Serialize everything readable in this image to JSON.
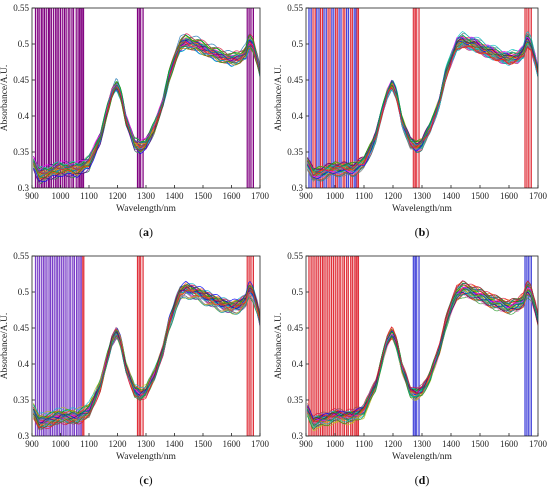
{
  "chart_data": [
    {
      "panel": "a",
      "type": "line",
      "panel_label": "(a)",
      "xlabel": "Wavelength/nm",
      "ylabel": "Absorbance/A.U.",
      "xlim": [
        900,
        1700
      ],
      "ylim": [
        0.3,
        0.55
      ],
      "xticks": [
        900,
        1000,
        1100,
        1200,
        1300,
        1400,
        1500,
        1600,
        1700
      ],
      "yticks": [
        0.3,
        0.35,
        0.4,
        0.45,
        0.5,
        0.55
      ],
      "grid": false,
      "num_spectra": 40,
      "spectrum_key_points": {
        "x": [
          905,
          925,
          960,
          1000,
          1060,
          1100,
          1140,
          1165,
          1180,
          1197,
          1212,
          1230,
          1260,
          1280,
          1300,
          1330,
          1360,
          1380,
          1405,
          1420,
          1440,
          1480,
          1520,
          1560,
          1600,
          1630,
          1650,
          1662,
          1675,
          1690,
          1700
        ],
        "y": [
          0.335,
          0.318,
          0.322,
          0.327,
          0.326,
          0.335,
          0.37,
          0.41,
          0.432,
          0.445,
          0.43,
          0.395,
          0.362,
          0.357,
          0.362,
          0.385,
          0.42,
          0.455,
          0.485,
          0.5,
          0.505,
          0.5,
          0.492,
          0.485,
          0.48,
          0.483,
          0.49,
          0.506,
          0.5,
          0.48,
          0.462
        ]
      },
      "selected_bands": [
        {
          "start": 912,
          "end": 920,
          "color": "#800080"
        },
        {
          "start": 925,
          "end": 933,
          "color": "#800080"
        },
        {
          "start": 938,
          "end": 944,
          "color": "#800080"
        },
        {
          "start": 950,
          "end": 958,
          "color": "#800080"
        },
        {
          "start": 962,
          "end": 968,
          "color": "#800080"
        },
        {
          "start": 975,
          "end": 983,
          "color": "#800080"
        },
        {
          "start": 988,
          "end": 994,
          "color": "#800080"
        },
        {
          "start": 1000,
          "end": 1008,
          "color": "#800080"
        },
        {
          "start": 1014,
          "end": 1020,
          "color": "#800080"
        },
        {
          "start": 1027,
          "end": 1033,
          "color": "#800080"
        },
        {
          "start": 1040,
          "end": 1046,
          "color": "#800080"
        },
        {
          "start": 1055,
          "end": 1062,
          "color": "#800080"
        },
        {
          "start": 1067,
          "end": 1072,
          "color": "#800080"
        },
        {
          "start": 1076,
          "end": 1081,
          "color": "#800080"
        },
        {
          "start": 1270,
          "end": 1276,
          "color": "#800080"
        },
        {
          "start": 1280,
          "end": 1290,
          "color": "#800080"
        },
        {
          "start": 1655,
          "end": 1662,
          "color": "#800080"
        },
        {
          "start": 1668,
          "end": 1677,
          "color": "#800080"
        }
      ]
    },
    {
      "panel": "b",
      "type": "line",
      "panel_label": "(b)",
      "xlabel": "Wavelength/nm",
      "ylabel": "Absorbance/A.U.",
      "xlim": [
        900,
        1700
      ],
      "ylim": [
        0.3,
        0.55
      ],
      "xticks": [
        900,
        1000,
        1100,
        1200,
        1300,
        1400,
        1500,
        1600,
        1700
      ],
      "yticks": [
        0.3,
        0.35,
        0.4,
        0.45,
        0.5,
        0.55
      ],
      "grid": false,
      "num_spectra": 40,
      "spectrum_key_points": {
        "x": [
          905,
          925,
          960,
          1000,
          1060,
          1100,
          1140,
          1165,
          1180,
          1197,
          1212,
          1230,
          1260,
          1280,
          1300,
          1330,
          1360,
          1380,
          1405,
          1420,
          1440,
          1480,
          1520,
          1560,
          1600,
          1630,
          1650,
          1662,
          1675,
          1690,
          1700
        ],
        "y": [
          0.335,
          0.318,
          0.322,
          0.327,
          0.326,
          0.335,
          0.37,
          0.41,
          0.432,
          0.445,
          0.43,
          0.395,
          0.362,
          0.357,
          0.362,
          0.385,
          0.42,
          0.455,
          0.485,
          0.5,
          0.505,
          0.5,
          0.492,
          0.485,
          0.48,
          0.483,
          0.49,
          0.506,
          0.5,
          0.48,
          0.462
        ]
      },
      "selected_bands": [
        {
          "start": 910,
          "end": 918,
          "color": "#3a3ad8"
        },
        {
          "start": 924,
          "end": 932,
          "color": "#e0303a"
        },
        {
          "start": 937,
          "end": 945,
          "color": "#3a3ad8"
        },
        {
          "start": 950,
          "end": 957,
          "color": "#e0303a"
        },
        {
          "start": 962,
          "end": 970,
          "color": "#3a3ad8"
        },
        {
          "start": 976,
          "end": 983,
          "color": "#e0303a"
        },
        {
          "start": 989,
          "end": 996,
          "color": "#3a3ad8"
        },
        {
          "start": 1002,
          "end": 1008,
          "color": "#e0303a"
        },
        {
          "start": 1014,
          "end": 1021,
          "color": "#3a3ad8"
        },
        {
          "start": 1028,
          "end": 1034,
          "color": "#e0303a"
        },
        {
          "start": 1040,
          "end": 1047,
          "color": "#3a3ad8"
        },
        {
          "start": 1054,
          "end": 1060,
          "color": "#e0303a"
        },
        {
          "start": 1066,
          "end": 1072,
          "color": "#3a3ad8"
        },
        {
          "start": 1076,
          "end": 1081,
          "color": "#e0303a"
        },
        {
          "start": 1270,
          "end": 1276,
          "color": "#e0303a"
        },
        {
          "start": 1280,
          "end": 1290,
          "color": "#e0303a"
        },
        {
          "start": 1655,
          "end": 1662,
          "color": "#e0303a"
        },
        {
          "start": 1668,
          "end": 1677,
          "color": "#e0303a"
        }
      ]
    },
    {
      "panel": "c",
      "type": "line",
      "panel_label": "(c)",
      "xlabel": "Wavelength/nm",
      "ylabel": "Absorbance/A.U.",
      "xlim": [
        900,
        1700
      ],
      "ylim": [
        0.3,
        0.55
      ],
      "xticks": [
        900,
        1000,
        1100,
        1200,
        1300,
        1400,
        1500,
        1600,
        1700
      ],
      "yticks": [
        0.3,
        0.35,
        0.4,
        0.45,
        0.5,
        0.55
      ],
      "grid": false,
      "num_spectra": 40,
      "spectrum_key_points": {
        "x": [
          905,
          925,
          960,
          1000,
          1060,
          1100,
          1140,
          1165,
          1180,
          1197,
          1212,
          1230,
          1260,
          1280,
          1300,
          1330,
          1360,
          1380,
          1405,
          1420,
          1440,
          1480,
          1520,
          1560,
          1600,
          1630,
          1650,
          1662,
          1675,
          1690,
          1700
        ],
        "y": [
          0.335,
          0.318,
          0.322,
          0.327,
          0.326,
          0.335,
          0.37,
          0.41,
          0.432,
          0.445,
          0.43,
          0.395,
          0.362,
          0.357,
          0.362,
          0.385,
          0.42,
          0.455,
          0.485,
          0.5,
          0.505,
          0.5,
          0.492,
          0.485,
          0.48,
          0.483,
          0.49,
          0.506,
          0.5,
          0.48,
          0.462
        ]
      },
      "selected_bands": [
        {
          "start": 912,
          "end": 920,
          "color": "#7a3fc8"
        },
        {
          "start": 926,
          "end": 934,
          "color": "#7a3fc8"
        },
        {
          "start": 940,
          "end": 946,
          "color": "#7a3fc8"
        },
        {
          "start": 952,
          "end": 960,
          "color": "#7a3fc8"
        },
        {
          "start": 965,
          "end": 972,
          "color": "#7a3fc8"
        },
        {
          "start": 978,
          "end": 985,
          "color": "#7a3fc8"
        },
        {
          "start": 990,
          "end": 997,
          "color": "#7a3fc8"
        },
        {
          "start": 1003,
          "end": 1010,
          "color": "#7a3fc8"
        },
        {
          "start": 1016,
          "end": 1023,
          "color": "#7a3fc8"
        },
        {
          "start": 1030,
          "end": 1036,
          "color": "#7a3fc8"
        },
        {
          "start": 1043,
          "end": 1049,
          "color": "#7a3fc8"
        },
        {
          "start": 1056,
          "end": 1062,
          "color": "#7a3fc8"
        },
        {
          "start": 1068,
          "end": 1073,
          "color": "#7a3fc8"
        },
        {
          "start": 1078,
          "end": 1082,
          "color": "#e0303a"
        },
        {
          "start": 1270,
          "end": 1276,
          "color": "#e0303a"
        },
        {
          "start": 1280,
          "end": 1290,
          "color": "#e0303a"
        },
        {
          "start": 1655,
          "end": 1662,
          "color": "#e0303a"
        },
        {
          "start": 1668,
          "end": 1677,
          "color": "#e0303a"
        }
      ]
    },
    {
      "panel": "d",
      "type": "line",
      "panel_label": "(d)",
      "xlabel": "Wavelength/nm",
      "ylabel": "Absorbance/A.U.",
      "xlim": [
        900,
        1700
      ],
      "ylim": [
        0.3,
        0.55
      ],
      "xticks": [
        900,
        1000,
        1100,
        1200,
        1300,
        1400,
        1500,
        1600,
        1700
      ],
      "yticks": [
        0.3,
        0.35,
        0.4,
        0.45,
        0.5,
        0.55
      ],
      "grid": false,
      "num_spectra": 40,
      "spectrum_key_points": {
        "x": [
          905,
          925,
          960,
          1000,
          1060,
          1100,
          1140,
          1165,
          1180,
          1197,
          1212,
          1230,
          1260,
          1280,
          1300,
          1330,
          1360,
          1380,
          1405,
          1420,
          1440,
          1480,
          1520,
          1560,
          1600,
          1630,
          1650,
          1662,
          1675,
          1690,
          1700
        ],
        "y": [
          0.335,
          0.318,
          0.322,
          0.327,
          0.326,
          0.335,
          0.37,
          0.41,
          0.432,
          0.445,
          0.43,
          0.395,
          0.362,
          0.357,
          0.362,
          0.385,
          0.42,
          0.455,
          0.485,
          0.5,
          0.505,
          0.5,
          0.492,
          0.485,
          0.48,
          0.483,
          0.49,
          0.506,
          0.5,
          0.48,
          0.462
        ]
      },
      "selected_bands": [
        {
          "start": 910,
          "end": 918,
          "color": "#e0303a"
        },
        {
          "start": 924,
          "end": 931,
          "color": "#e0303a"
        },
        {
          "start": 937,
          "end": 944,
          "color": "#e0303a"
        },
        {
          "start": 950,
          "end": 957,
          "color": "#e0303a"
        },
        {
          "start": 962,
          "end": 969,
          "color": "#e0303a"
        },
        {
          "start": 975,
          "end": 982,
          "color": "#e0303a"
        },
        {
          "start": 988,
          "end": 995,
          "color": "#e0303a"
        },
        {
          "start": 1001,
          "end": 1008,
          "color": "#e0303a"
        },
        {
          "start": 1014,
          "end": 1020,
          "color": "#e0303a"
        },
        {
          "start": 1027,
          "end": 1033,
          "color": "#e0303a"
        },
        {
          "start": 1040,
          "end": 1046,
          "color": "#e0303a"
        },
        {
          "start": 1054,
          "end": 1060,
          "color": "#e0303a"
        },
        {
          "start": 1066,
          "end": 1072,
          "color": "#e0303a"
        },
        {
          "start": 1076,
          "end": 1081,
          "color": "#e0303a"
        },
        {
          "start": 1270,
          "end": 1276,
          "color": "#3a3ad8"
        },
        {
          "start": 1280,
          "end": 1290,
          "color": "#3a3ad8"
        },
        {
          "start": 1655,
          "end": 1662,
          "color": "#3a3ad8"
        },
        {
          "start": 1668,
          "end": 1677,
          "color": "#3a3ad8"
        }
      ]
    }
  ]
}
